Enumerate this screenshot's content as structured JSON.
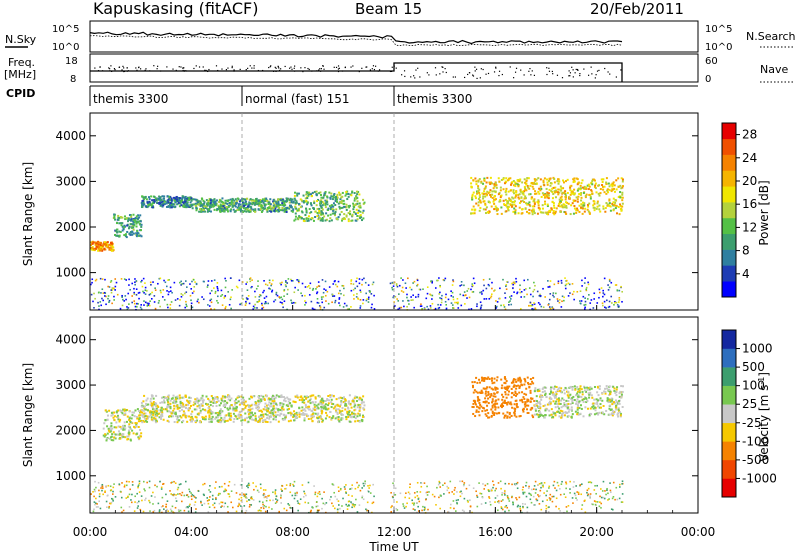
{
  "header": {
    "station": "Kapuskasing (fitACF)",
    "beam": "Beam 15",
    "date": "20/Feb/2011"
  },
  "noise_panel": {
    "left_label": "N.Sky",
    "left_ticks": [
      "10^5",
      "10^0"
    ],
    "right_label": "N.Search",
    "right_ticks": [
      "10^5",
      "10^0"
    ]
  },
  "freq_panel": {
    "left_label_1": "Freq.",
    "left_label_2": "[MHz]",
    "left_ticks": [
      "18",
      "8"
    ],
    "right_label": "Nave",
    "right_ticks": [
      "60",
      "0"
    ]
  },
  "cpid": {
    "label": "CPID",
    "segments": [
      {
        "name": "themis 3300",
        "start": 0,
        "end": 6
      },
      {
        "name": "normal (fast) 151",
        "start": 6,
        "end": 12
      },
      {
        "name": "themis 3300",
        "start": 12,
        "end": 24
      }
    ]
  },
  "chart_data": [
    {
      "type": "heatmap",
      "panel": "power",
      "ylabel": "Slant Range [km]",
      "xlim": [
        0,
        24
      ],
      "ylim": [
        180,
        4500
      ],
      "yticks": [
        1000,
        2000,
        3000,
        4000
      ],
      "colorbar": {
        "label": "Power [dB]",
        "ticks": [
          "28",
          "24",
          "20",
          "16",
          "12",
          "8",
          "4"
        ],
        "range": [
          0,
          30
        ],
        "colors": [
          "#0000ff",
          "#1e3cb4",
          "#2f7fa0",
          "#3c9e6e",
          "#54c046",
          "#b4d23c",
          "#f0e600",
          "#f5b400",
          "#f58200",
          "#f05000",
          "#e60000"
        ]
      },
      "scatter_bands": [
        {
          "t_start": 0.0,
          "t_end": 0.9,
          "r_start": 1500,
          "r_end": 1700,
          "value": 22
        },
        {
          "t_start": 0.9,
          "t_end": 2.0,
          "r_start": 1800,
          "r_end": 2300,
          "value": 10
        },
        {
          "t_start": 2.0,
          "t_end": 4.0,
          "r_start": 2450,
          "r_end": 2700,
          "value": 8
        },
        {
          "t_start": 4.0,
          "t_end": 8.0,
          "r_start": 2350,
          "r_end": 2650,
          "value": 10
        },
        {
          "t_start": 8.0,
          "t_end": 10.8,
          "r_start": 2150,
          "r_end": 2800,
          "value": 12
        },
        {
          "t_start": 15.0,
          "t_end": 21.0,
          "r_start": 2300,
          "r_end": 3100,
          "value": 18
        }
      ]
    },
    {
      "type": "heatmap",
      "panel": "velocity",
      "ylabel": "Slant Range [km]",
      "xlabel": "Time UT",
      "xlim": [
        0,
        24
      ],
      "ylim": [
        180,
        4500
      ],
      "xticks": [
        "00:00",
        "04:00",
        "08:00",
        "12:00",
        "16:00",
        "20:00",
        "00:00"
      ],
      "yticks": [
        1000,
        2000,
        3000,
        4000
      ],
      "colorbar": {
        "label": "Velocity [m s",
        "label_sup": "-1",
        "label_end": "]",
        "ticks": [
          "1000",
          "500",
          "100",
          "25",
          "-25",
          "-100",
          "-500",
          "-1000"
        ],
        "colors": [
          "#1428a0",
          "#2d6ebe",
          "#3c9e6e",
          "#78c850",
          "#c8c8c8",
          "#f5c800",
          "#f58200",
          "#f04600",
          "#e60000"
        ]
      },
      "scatter_bands": [
        {
          "t_start": 0.5,
          "t_end": 2.0,
          "r_start": 1800,
          "r_end": 2500,
          "value": 0
        },
        {
          "t_start": 2.0,
          "t_end": 10.8,
          "r_start": 2200,
          "r_end": 2800,
          "value": 0
        },
        {
          "t_start": 15.0,
          "t_end": 17.5,
          "r_start": 2300,
          "r_end": 3200,
          "value": -350
        },
        {
          "t_start": 17.5,
          "t_end": 21.0,
          "r_start": 2300,
          "r_end": 3000,
          "value": 10
        }
      ]
    }
  ]
}
